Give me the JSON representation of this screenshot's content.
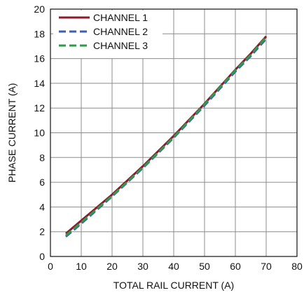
{
  "chart_data": {
    "type": "line",
    "xlabel": "TOTAL RAIL CURRENT (A)",
    "ylabel": "PHASE CURRENT (A)",
    "xlim": [
      0,
      80
    ],
    "ylim": [
      0,
      20
    ],
    "x_ticks": [
      0,
      10,
      20,
      30,
      40,
      50,
      60,
      70,
      80
    ],
    "y_ticks": [
      0,
      2,
      4,
      6,
      8,
      10,
      12,
      14,
      16,
      18,
      20
    ],
    "grid": true,
    "legend_position": "top-left",
    "series": [
      {
        "name": "CHANNEL 1",
        "color": "#8b1a2b",
        "dash": "solid",
        "x": [
          5,
          10,
          20,
          30,
          40,
          50,
          60,
          65,
          70
        ],
        "y": [
          1.85,
          2.9,
          5.0,
          7.3,
          9.75,
          12.35,
          15.1,
          16.4,
          17.8
        ]
      },
      {
        "name": "CHANNEL 2",
        "color": "#3a5fb5",
        "dash": "dash",
        "x": [
          5,
          10,
          20,
          30,
          40,
          50,
          60,
          65,
          70
        ],
        "y": [
          1.6,
          2.65,
          4.85,
          7.15,
          9.6,
          12.2,
          14.95,
          16.2,
          17.6
        ]
      },
      {
        "name": "CHANNEL 3",
        "color": "#2e9a4a",
        "dash": "dash",
        "x": [
          5,
          10,
          20,
          30,
          40,
          50,
          60,
          65,
          70
        ],
        "y": [
          1.7,
          2.75,
          4.9,
          7.2,
          9.65,
          12.3,
          15.05,
          16.3,
          17.75
        ]
      }
    ]
  }
}
